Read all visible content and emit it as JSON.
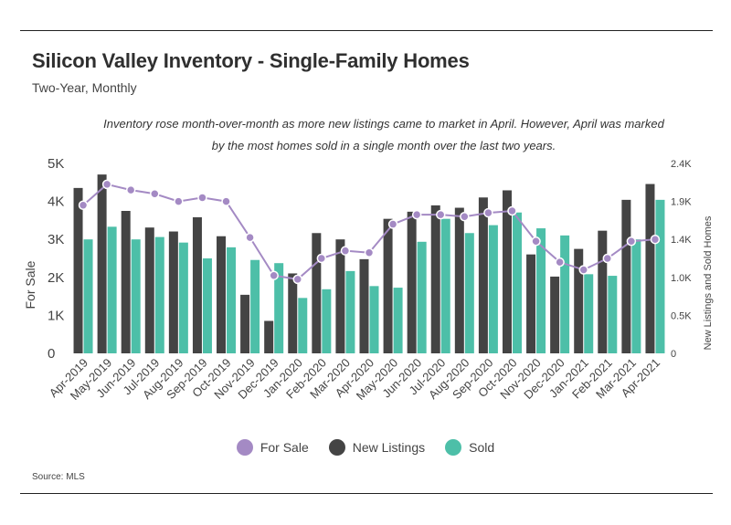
{
  "title": "Silicon Valley Inventory - Single-Family Homes",
  "subtitle": "Two-Year, Monthly",
  "annotation": "Inventory rose month-over-month as more new listings came to market in April. However, April was marked by the most homes sold in a single month over the last two years.",
  "source": "Source:  MLS",
  "colors": {
    "for_sale": "#a48ac4",
    "new_listings": "#444444",
    "sold": "#4dbfa8"
  },
  "legend": [
    {
      "label": "For Sale",
      "color_key": "for_sale"
    },
    {
      "label": "New Listings",
      "color_key": "new_listings"
    },
    {
      "label": "Sold",
      "color_key": "sold"
    }
  ],
  "chart_data": {
    "type": "bar",
    "categories": [
      "Apr-2019",
      "May-2019",
      "Jun-2019",
      "Jul-2019",
      "Aug-2019",
      "Sep-2019",
      "Oct-2019",
      "Nov-2019",
      "Dec-2019",
      "Jan-2020",
      "Feb-2020",
      "Mar-2020",
      "Apr-2020",
      "May-2020",
      "Jun-2020",
      "Jul-2020",
      "Aug-2020",
      "Sep-2020",
      "Oct-2020",
      "Nov-2020",
      "Dec-2020",
      "Jan-2021",
      "Feb-2021",
      "Mar-2021",
      "Apr-2021"
    ],
    "ylabel_left": "For Sale",
    "ylabel_right": "New Listings and Sold Homes",
    "left_axis": {
      "min": 0,
      "max": 5000,
      "ticks": [
        0,
        1000,
        2000,
        3000,
        4000,
        5000
      ],
      "tick_labels": [
        "0",
        "1K",
        "2K",
        "3K",
        "4K",
        "5K"
      ]
    },
    "right_axis": {
      "min": 0,
      "max": 2400,
      "ticks": [
        0,
        480,
        960,
        1440,
        1920,
        2400
      ],
      "tick_labels": [
        "0",
        "0.5K",
        "1.0K",
        "1.4K",
        "1.9K",
        "2.4K"
      ]
    },
    "series": [
      {
        "name": "New Listings",
        "kind": "bar",
        "axis": "right",
        "color_key": "new_listings",
        "values": [
          2090,
          2260,
          1800,
          1590,
          1540,
          1720,
          1480,
          740,
          410,
          1010,
          1520,
          1440,
          1190,
          1700,
          1790,
          1870,
          1840,
          1970,
          2060,
          1250,
          970,
          1320,
          1550,
          1940,
          2140
        ]
      },
      {
        "name": "Sold",
        "kind": "bar",
        "axis": "right",
        "color_key": "sold",
        "values": [
          1440,
          1600,
          1440,
          1470,
          1400,
          1200,
          1340,
          1180,
          1140,
          700,
          810,
          1040,
          850,
          830,
          1410,
          1700,
          1520,
          1620,
          1780,
          1580,
          1490,
          1000,
          980,
          1440,
          1940
        ]
      },
      {
        "name": "For Sale",
        "kind": "line",
        "axis": "left",
        "color_key": "for_sale",
        "values": [
          3900,
          4450,
          4300,
          4200,
          4000,
          4100,
          4000,
          3050,
          2050,
          1950,
          2500,
          2700,
          2650,
          3400,
          3650,
          3650,
          3600,
          3700,
          3750,
          2950,
          2400,
          2200,
          2500,
          2950,
          3000
        ]
      }
    ]
  }
}
